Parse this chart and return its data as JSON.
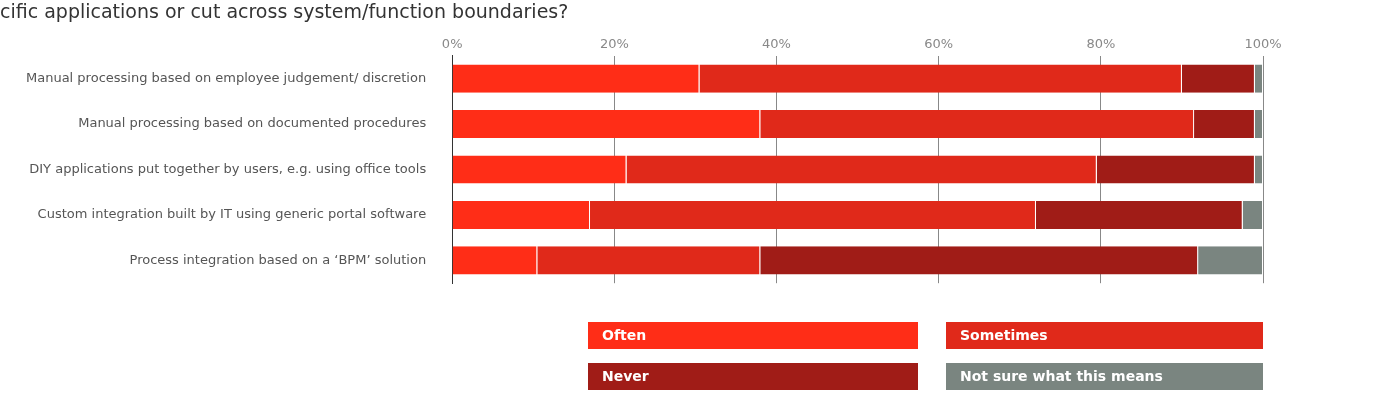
{
  "chart_data": {
    "type": "bar",
    "orientation": "horizontal",
    "stacked": true,
    "title": "cific applications or cut across system/function boundaries?",
    "categories": [
      "Manual processing based on employee judgement/ discretion",
      "Manual processing based on documented procedures",
      "DIY applications put together by users, e.g. using office tools",
      "Custom integration built by IT using generic portal software",
      "Process integration based on a ‘BPM’ solution"
    ],
    "series": [
      {
        "name": "Often",
        "color": "#ff2d17",
        "values": [
          30.5,
          38,
          21.5,
          17,
          10.5
        ]
      },
      {
        "name": "Sometimes",
        "color": "#e0291a",
        "values": [
          59.5,
          53.5,
          58,
          55,
          27.5
        ]
      },
      {
        "name": "Never",
        "color": "#a01c17",
        "values": [
          9,
          7.5,
          19.5,
          25.5,
          54
        ]
      },
      {
        "name": "Not sure what this means",
        "color": "#7a8580",
        "values": [
          1,
          1,
          1,
          2.5,
          8
        ]
      }
    ],
    "xlim": [
      0,
      100
    ],
    "xticks": [
      {
        "value": 0,
        "label": "0%"
      },
      {
        "value": 20,
        "label": "20%"
      },
      {
        "value": 40,
        "label": "40%"
      },
      {
        "value": 60,
        "label": "60%"
      },
      {
        "value": 80,
        "label": "80%"
      },
      {
        "value": 100,
        "label": "100%"
      }
    ],
    "grid": "x",
    "legend": "bottom"
  }
}
